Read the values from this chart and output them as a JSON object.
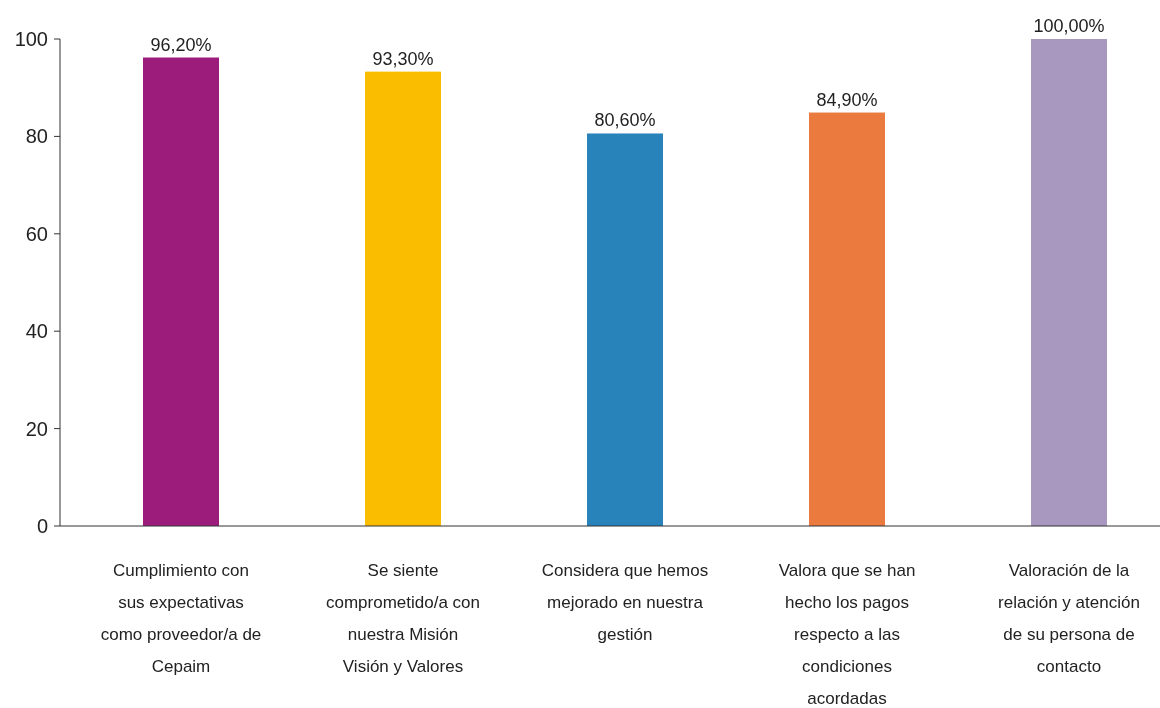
{
  "chart_data": {
    "type": "bar",
    "categories": [
      "Cumplimiento con sus expectativas como proveedor/a de Cepaim",
      "Se siente comprometido/a con nuestra Misión Visión y Valores",
      "Considera que hemos mejorado en nuestra gestión",
      "Valora que se han hecho los pagos respecto a las condiciones acordadas",
      "Valoración de la relación y atención de su persona de contacto"
    ],
    "values": [
      96.2,
      93.3,
      80.6,
      84.9,
      100
    ],
    "colors": [
      "#9c1c7c",
      "#fbbd00",
      "#2983bb",
      "#ea7a3e",
      "#a897bf"
    ],
    "value_labels": [
      "96,20%",
      "93,30%",
      "80,60%",
      "84,90%",
      "100,00%"
    ],
    "ylim": [
      0,
      100
    ],
    "yticks": [
      0,
      20,
      40,
      60,
      80,
      100
    ],
    "grid": false
  }
}
